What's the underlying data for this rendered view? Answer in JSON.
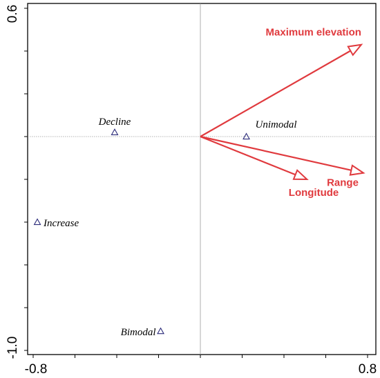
{
  "chart_data": {
    "type": "scatter",
    "title": "",
    "xlabel": "",
    "ylabel": "",
    "xlim": [
      -0.8,
      0.8
    ],
    "ylim": [
      -1.0,
      0.6
    ],
    "x_tick_labels": [
      "-0.8",
      "0.8"
    ],
    "y_tick_labels": [
      "0.6",
      "-1.0"
    ],
    "grid": false,
    "reference_lines": {
      "x": 0,
      "y": 0
    },
    "points": [
      {
        "label": "Decline",
        "x": -0.41,
        "y": 0.02
      },
      {
        "label": "Unimodal",
        "x": 0.22,
        "y": 0.0
      },
      {
        "label": "Increase",
        "x": -0.78,
        "y": -0.4
      },
      {
        "label": "Bimodal",
        "x": -0.19,
        "y": -0.91
      }
    ],
    "arrows": [
      {
        "label": "Maximum elevation",
        "x": 0.77,
        "y": 0.43
      },
      {
        "label": "Range",
        "x": 0.78,
        "y": -0.17
      },
      {
        "label": "Longitude",
        "x": 0.51,
        "y": -0.2
      }
    ],
    "colors": {
      "arrow": "#e03a3e",
      "point": "#2b2b7a",
      "refline": "#9a9a9a"
    }
  }
}
